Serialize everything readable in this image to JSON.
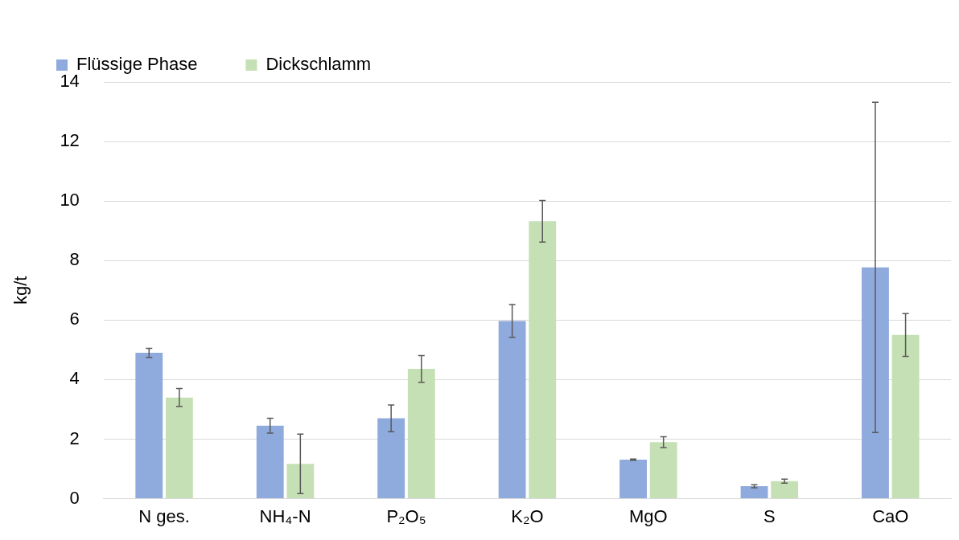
{
  "chart_data": {
    "type": "bar",
    "ylabel": "kg/t",
    "categories": [
      "N ges.",
      "NH₄-N",
      "P₂O₅",
      "K₂O",
      "MgO",
      "S",
      "CaO"
    ],
    "series": [
      {
        "name": "Flüssige Phase",
        "color": "#8faadc",
        "values": [
          4.9,
          2.45,
          2.7,
          5.97,
          1.31,
          0.42,
          7.77
        ],
        "errors": [
          0.15,
          0.25,
          0.45,
          0.55,
          0.02,
          0.05,
          5.55
        ]
      },
      {
        "name": "Dickschlamm",
        "color": "#c5e0b4",
        "values": [
          3.4,
          1.17,
          4.36,
          9.32,
          1.9,
          0.59,
          5.5
        ],
        "errors": [
          0.3,
          1.0,
          0.45,
          0.7,
          0.18,
          0.07,
          0.72
        ]
      }
    ],
    "ylim": [
      0,
      14
    ],
    "yticks": [
      0,
      2,
      4,
      6,
      8,
      10,
      12,
      14
    ],
    "grid": "y",
    "legend": "top left"
  }
}
